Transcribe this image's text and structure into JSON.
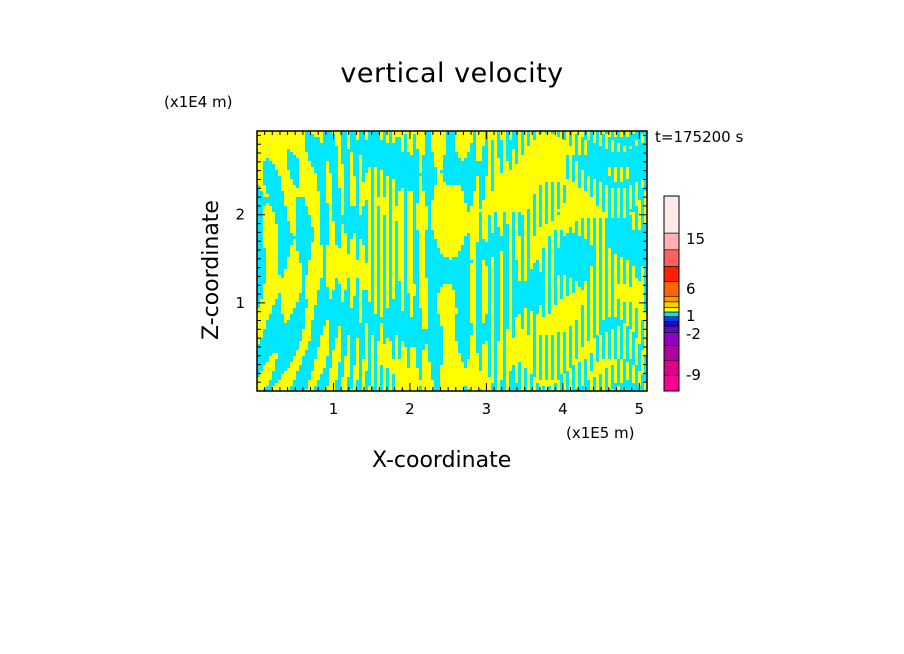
{
  "chart_data": {
    "type": "heatmap",
    "title": "vertical velocity",
    "xlabel": "X-coordinate",
    "ylabel": "Z-coordinate",
    "x_unit": "(x1E5 m)",
    "y_unit": "(x1E4 m)",
    "time_label": "t=175200 s",
    "x_ticks": [
      "1",
      "2",
      "3",
      "4",
      "5"
    ],
    "y_ticks": [
      "1",
      "2"
    ],
    "xlim": [
      0,
      5.1
    ],
    "ylim": [
      0,
      2.95
    ],
    "grid": false,
    "legend": "colorbar, right",
    "colorbar": {
      "tick_labels": [
        "15",
        "6",
        "1",
        "-2",
        "-9"
      ],
      "bands": [
        {
          "color": "#ff0090"
        },
        {
          "color": "#e0008c"
        },
        {
          "color": "#b000a0"
        },
        {
          "color": "#9000c0"
        },
        {
          "color": "#5010c0"
        },
        {
          "color": "#2010b0"
        },
        {
          "color": "#0040ff"
        },
        {
          "color": "#00e0ff"
        },
        {
          "color": "#ffff00"
        },
        {
          "color": "#ffcc00"
        },
        {
          "color": "#ff9900"
        },
        {
          "color": "#ff6600"
        },
        {
          "color": "#ff2000"
        },
        {
          "color": "#ff6060"
        },
        {
          "color": "#ffb0b0"
        },
        {
          "color": "#ffe8e8"
        }
      ]
    },
    "field_colors": {
      "positive": "#ffff00",
      "negative": "#00e8ff"
    }
  }
}
